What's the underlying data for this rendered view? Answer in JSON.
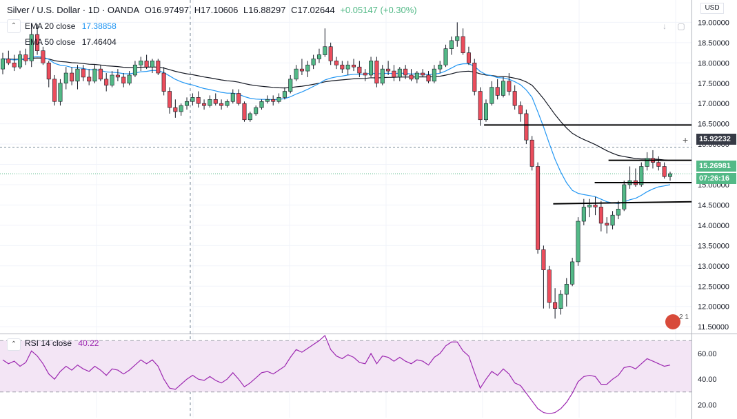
{
  "header": {
    "symbol": "Silver / U.S. Dollar · 1D · OANDA",
    "open": "O16.97497",
    "high": "H17.10606",
    "low": "L16.88297",
    "close": "C17.02644",
    "change": "+0.05147 (+0.30%)",
    "currency": "USD"
  },
  "indicators": [
    {
      "label": "EMA 20 close",
      "value": "17.38858",
      "color": "#2196f3"
    },
    {
      "label": "EMA 50 close",
      "value": "17.46404",
      "color": "#131722"
    }
  ],
  "rsi": {
    "label": "RSI 14 close",
    "value": "40.22",
    "color": "#9c27b0"
  },
  "price_tags": {
    "crosshair": "15.92232",
    "last": "15.26981",
    "countdown": "07:26:16"
  },
  "logo_text": "2 1",
  "colors": {
    "up": "#53b987",
    "down": "#eb4d5c",
    "ema20": "#2196f3",
    "ema50": "#131722",
    "rsi": "#9c27b0",
    "rsi_band": "#f3e5f5",
    "last_tag": "#53b987",
    "countdown_tag": "#53b987"
  },
  "chart_data": {
    "type": "candlestick",
    "price_axis": {
      "ticks": [
        "11.50000",
        "12.00000",
        "12.50000",
        "13.00000",
        "13.50000",
        "14.00000",
        "14.50000",
        "15.00000",
        "15.50000",
        "16.00000",
        "16.50000",
        "17.00000",
        "17.50000",
        "18.00000",
        "18.50000",
        "19.00000"
      ],
      "range": [
        11.35,
        19.55
      ]
    },
    "rsi_axis": {
      "ticks": [
        "20.00",
        "40.00",
        "60.00"
      ],
      "range": [
        10,
        75
      ],
      "band": [
        30,
        70
      ]
    },
    "support_resistance": [
      {
        "price": 16.47,
        "x_start": 0.7
      },
      {
        "price": 15.6,
        "x_start": 0.88
      },
      {
        "price": 15.05,
        "x_start": 0.86
      },
      {
        "price": 14.53,
        "x_start": 0.8,
        "price_end": 14.58
      }
    ],
    "candles": [
      [
        17.85,
        18.25,
        17.72,
        18.1
      ],
      [
        18.1,
        18.3,
        17.95,
        18.0
      ],
      [
        18.0,
        18.2,
        17.8,
        17.9
      ],
      [
        17.9,
        18.3,
        17.85,
        18.2
      ],
      [
        18.2,
        18.35,
        17.95,
        18.05
      ],
      [
        18.05,
        18.95,
        17.9,
        18.7
      ],
      [
        18.7,
        18.95,
        18.2,
        18.3
      ],
      [
        18.3,
        18.4,
        17.95,
        18.0
      ],
      [
        18.0,
        18.05,
        17.4,
        17.6
      ],
      [
        17.6,
        17.7,
        16.95,
        17.05
      ],
      [
        17.05,
        17.6,
        16.95,
        17.5
      ],
      [
        17.5,
        17.9,
        17.35,
        17.75
      ],
      [
        17.75,
        17.9,
        17.45,
        17.55
      ],
      [
        17.55,
        17.95,
        17.35,
        17.85
      ],
      [
        17.85,
        17.95,
        17.55,
        17.65
      ],
      [
        17.65,
        17.85,
        17.45,
        17.55
      ],
      [
        17.55,
        17.95,
        17.5,
        17.85
      ],
      [
        17.85,
        17.95,
        17.55,
        17.6
      ],
      [
        17.6,
        17.75,
        17.3,
        17.45
      ],
      [
        17.45,
        17.8,
        17.4,
        17.7
      ],
      [
        17.7,
        17.85,
        17.55,
        17.65
      ],
      [
        17.65,
        17.75,
        17.4,
        17.5
      ],
      [
        17.5,
        17.8,
        17.45,
        17.7
      ],
      [
        17.7,
        18.05,
        17.65,
        17.95
      ],
      [
        17.95,
        18.15,
        17.8,
        18.05
      ],
      [
        18.05,
        18.2,
        17.85,
        17.9
      ],
      [
        17.9,
        18.1,
        17.75,
        18.05
      ],
      [
        18.05,
        18.1,
        17.7,
        17.75
      ],
      [
        17.75,
        17.9,
        17.2,
        17.3
      ],
      [
        17.3,
        17.4,
        16.75,
        16.9
      ],
      [
        16.9,
        17.1,
        16.65,
        16.8
      ],
      [
        16.8,
        17.0,
        16.7,
        16.95
      ],
      [
        16.95,
        17.15,
        16.85,
        17.05
      ],
      [
        17.05,
        17.25,
        16.95,
        17.15
      ],
      [
        17.15,
        17.3,
        16.9,
        17.0
      ],
      [
        17.0,
        17.1,
        16.85,
        16.95
      ],
      [
        16.95,
        17.2,
        16.9,
        17.1
      ],
      [
        17.1,
        17.25,
        16.95,
        17.0
      ],
      [
        17.0,
        17.1,
        16.85,
        16.95
      ],
      [
        16.95,
        17.1,
        16.9,
        17.05
      ],
      [
        17.05,
        17.35,
        17.0,
        17.25
      ],
      [
        17.25,
        17.35,
        16.95,
        17.0
      ],
      [
        17.0,
        17.05,
        16.55,
        16.6
      ],
      [
        16.6,
        16.8,
        16.55,
        16.75
      ],
      [
        16.75,
        16.95,
        16.7,
        16.9
      ],
      [
        16.9,
        17.1,
        16.85,
        17.05
      ],
      [
        17.05,
        17.2,
        17.0,
        17.1
      ],
      [
        17.1,
        17.2,
        16.95,
        17.05
      ],
      [
        17.05,
        17.25,
        17.0,
        17.15
      ],
      [
        17.15,
        17.4,
        17.1,
        17.3
      ],
      [
        17.3,
        17.7,
        17.25,
        17.6
      ],
      [
        17.6,
        17.95,
        17.55,
        17.85
      ],
      [
        17.85,
        18.1,
        17.7,
        17.8
      ],
      [
        17.8,
        18.05,
        17.65,
        17.95
      ],
      [
        17.95,
        18.2,
        17.85,
        18.1
      ],
      [
        18.1,
        18.35,
        18.0,
        18.2
      ],
      [
        18.2,
        18.85,
        18.15,
        18.4
      ],
      [
        18.4,
        18.5,
        17.95,
        18.05
      ],
      [
        18.05,
        18.15,
        17.85,
        17.95
      ],
      [
        17.95,
        18.05,
        17.75,
        17.85
      ],
      [
        17.85,
        18.05,
        17.7,
        17.95
      ],
      [
        17.95,
        18.1,
        17.8,
        17.9
      ],
      [
        17.9,
        18.05,
        17.65,
        17.75
      ],
      [
        17.75,
        17.85,
        17.55,
        17.7
      ],
      [
        17.7,
        18.15,
        17.65,
        18.05
      ],
      [
        18.05,
        18.15,
        17.4,
        17.5
      ],
      [
        17.5,
        17.95,
        17.45,
        17.85
      ],
      [
        17.85,
        18.05,
        17.7,
        17.8
      ],
      [
        17.8,
        17.95,
        17.55,
        17.65
      ],
      [
        17.65,
        17.9,
        17.55,
        17.85
      ],
      [
        17.85,
        17.95,
        17.6,
        17.7
      ],
      [
        17.7,
        17.85,
        17.55,
        17.6
      ],
      [
        17.6,
        17.8,
        17.5,
        17.75
      ],
      [
        17.75,
        17.85,
        17.65,
        17.7
      ],
      [
        17.7,
        17.8,
        17.5,
        17.55
      ],
      [
        17.55,
        17.95,
        17.5,
        17.85
      ],
      [
        17.85,
        18.05,
        17.75,
        17.95
      ],
      [
        17.95,
        18.45,
        17.9,
        18.35
      ],
      [
        18.35,
        18.65,
        18.2,
        18.55
      ],
      [
        18.55,
        19.0,
        18.4,
        18.65
      ],
      [
        18.65,
        18.85,
        18.2,
        18.25
      ],
      [
        18.25,
        18.4,
        17.95,
        18.0
      ],
      [
        18.0,
        18.1,
        17.2,
        17.3
      ],
      [
        17.3,
        17.4,
        16.45,
        16.6
      ],
      [
        16.6,
        17.1,
        16.55,
        17.0
      ],
      [
        17.0,
        17.55,
        16.95,
        17.4
      ],
      [
        17.4,
        17.6,
        17.1,
        17.2
      ],
      [
        17.2,
        17.65,
        17.15,
        17.55
      ],
      [
        17.55,
        17.75,
        17.2,
        17.3
      ],
      [
        17.3,
        17.45,
        16.85,
        16.95
      ],
      [
        16.95,
        17.05,
        16.55,
        16.75
      ],
      [
        16.75,
        16.85,
        16.0,
        16.1
      ],
      [
        16.1,
        16.2,
        15.35,
        15.45
      ],
      [
        15.45,
        15.55,
        13.3,
        13.4
      ],
      [
        13.4,
        13.5,
        11.95,
        12.9
      ],
      [
        12.9,
        13.0,
        11.95,
        12.1
      ],
      [
        12.1,
        12.45,
        11.7,
        11.95
      ],
      [
        11.95,
        12.4,
        11.8,
        12.3
      ],
      [
        12.3,
        12.7,
        12.0,
        12.55
      ],
      [
        12.55,
        13.2,
        12.5,
        13.1
      ],
      [
        13.1,
        14.2,
        13.0,
        14.1
      ],
      [
        14.1,
        14.65,
        14.0,
        14.45
      ],
      [
        14.45,
        14.65,
        14.2,
        14.5
      ],
      [
        14.5,
        14.7,
        14.25,
        14.45
      ],
      [
        14.45,
        14.6,
        13.85,
        14.05
      ],
      [
        14.05,
        14.2,
        13.8,
        14.0
      ],
      [
        14.0,
        14.35,
        13.9,
        14.25
      ],
      [
        14.25,
        14.6,
        14.15,
        14.4
      ],
      [
        14.4,
        15.1,
        14.35,
        15.0
      ],
      [
        15.0,
        15.45,
        14.9,
        15.1
      ],
      [
        15.1,
        15.4,
        14.95,
        15.0
      ],
      [
        15.0,
        15.55,
        14.95,
        15.45
      ],
      [
        15.45,
        15.8,
        15.35,
        15.65
      ],
      [
        15.65,
        15.85,
        15.4,
        15.55
      ],
      [
        15.55,
        15.7,
        15.35,
        15.45
      ],
      [
        15.45,
        15.55,
        15.15,
        15.2
      ],
      [
        15.2,
        15.32,
        15.1,
        15.27
      ]
    ],
    "rsi_values": [
      55,
      52,
      54,
      50,
      53,
      62,
      58,
      52,
      44,
      40,
      46,
      50,
      47,
      51,
      48,
      46,
      50,
      47,
      43,
      48,
      47,
      44,
      47,
      51,
      55,
      52,
      55,
      50,
      40,
      33,
      32,
      36,
      40,
      43,
      40,
      39,
      42,
      39,
      37,
      40,
      45,
      40,
      34,
      37,
      41,
      45,
      46,
      44,
      47,
      50,
      57,
      63,
      61,
      64,
      67,
      70,
      74,
      63,
      58,
      56,
      59,
      57,
      53,
      52,
      60,
      52,
      58,
      57,
      54,
      57,
      54,
      52,
      55,
      54,
      51,
      57,
      60,
      66,
      69,
      69,
      62,
      58,
      45,
      33,
      40,
      46,
      43,
      48,
      44,
      37,
      35,
      29,
      23,
      17,
      14,
      13,
      14,
      17,
      22,
      29,
      38,
      42,
      43,
      42,
      36,
      36,
      40,
      43,
      49,
      50,
      48,
      52,
      56,
      54,
      52,
      50,
      51
    ]
  }
}
